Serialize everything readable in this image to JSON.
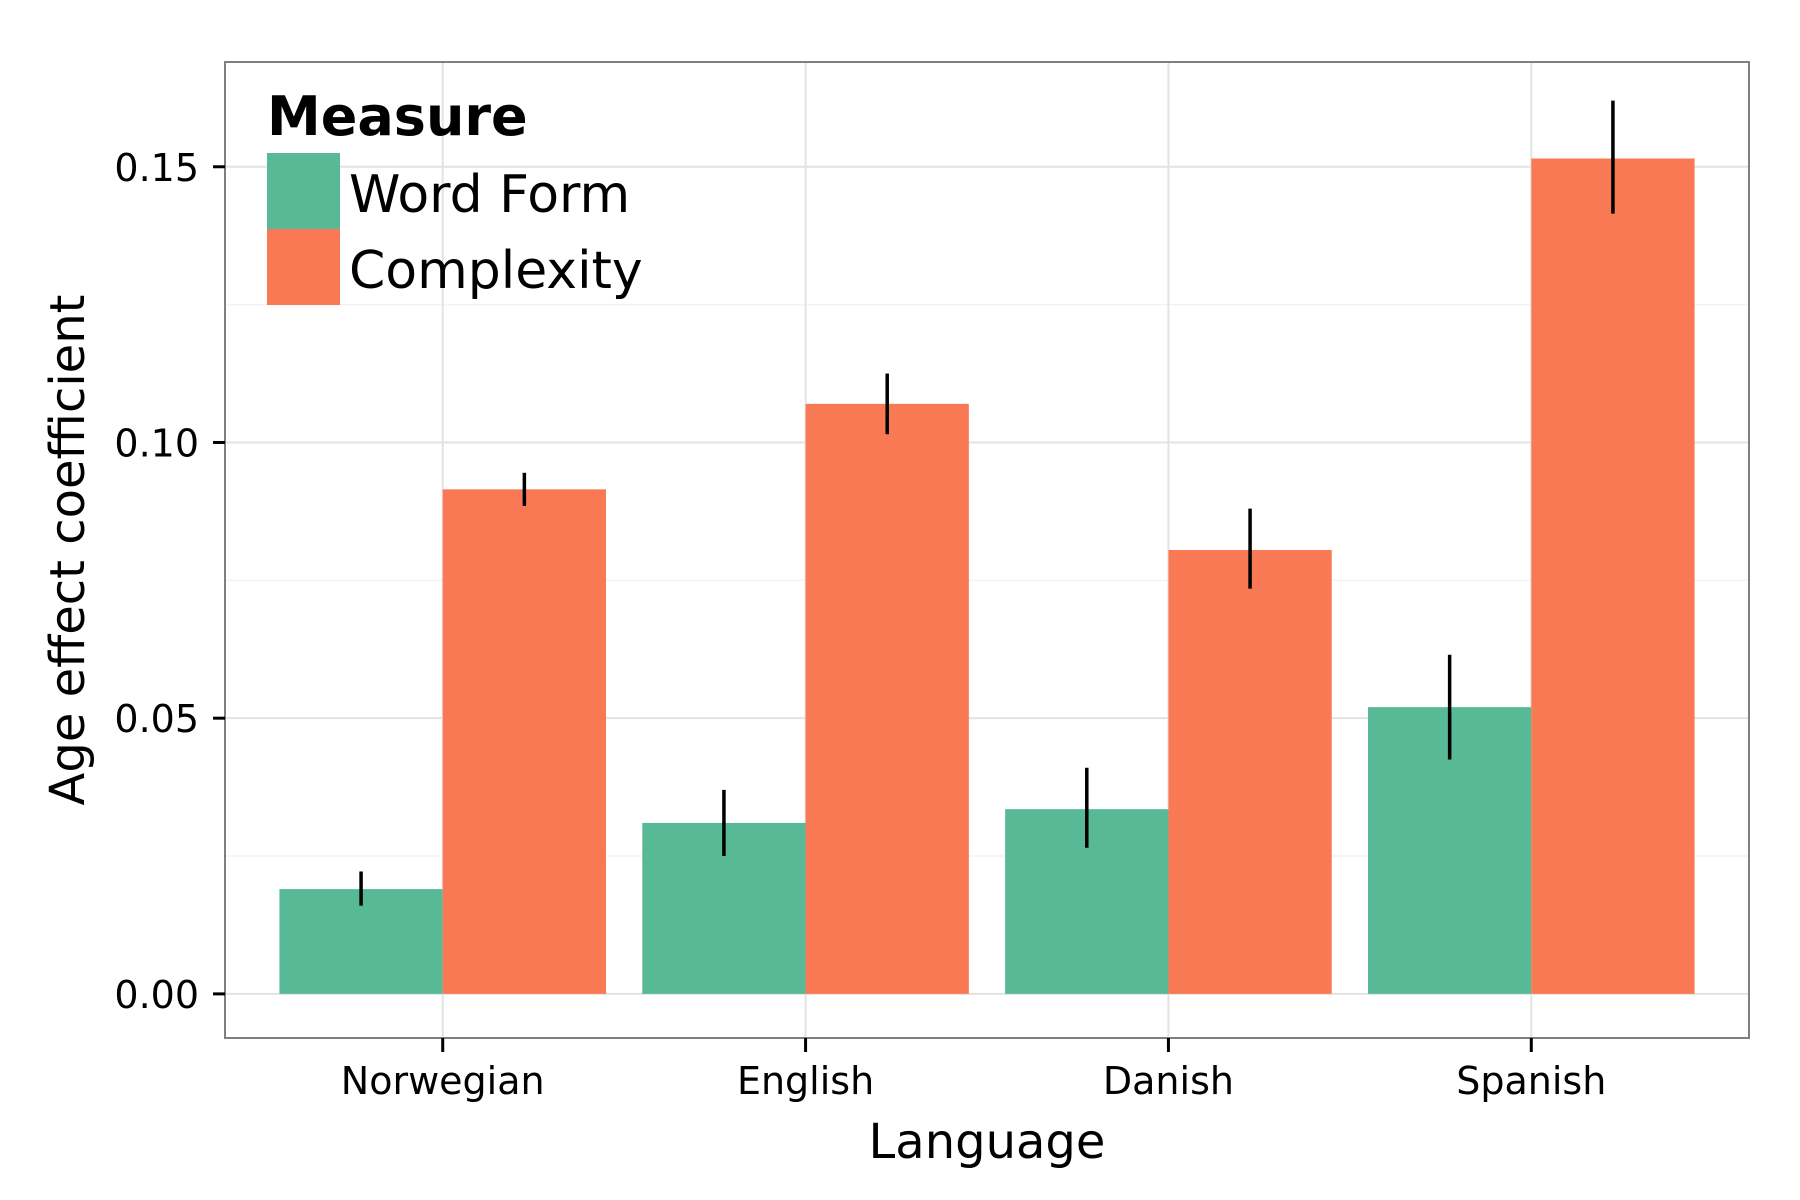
{
  "chart_data": {
    "type": "bar",
    "title": "",
    "xlabel": "Language",
    "ylabel": "Age effect coefficient",
    "categories": [
      "Norwegian",
      "English",
      "Danish",
      "Spanish"
    ],
    "ylim": [
      -0.008,
      0.169
    ],
    "yticks": [
      0.0,
      0.05,
      0.1,
      0.15
    ],
    "ytick_labels": [
      "0.00",
      "0.05",
      "0.10",
      "0.15"
    ],
    "grid": true,
    "legend": {
      "title": "Measure",
      "position": "top-left"
    },
    "series": [
      {
        "name": "Word Form",
        "color": "#57B995",
        "values": [
          0.019,
          0.031,
          0.0335,
          0.052
        ],
        "err_low": [
          0.016,
          0.025,
          0.0265,
          0.0425
        ],
        "err_high": [
          0.0222,
          0.037,
          0.041,
          0.0615
        ]
      },
      {
        "name": "Complexity",
        "color": "#F97954",
        "values": [
          0.0915,
          0.107,
          0.0805,
          0.1515
        ],
        "err_low": [
          0.0885,
          0.1015,
          0.0735,
          0.1415
        ],
        "err_high": [
          0.0945,
          0.1125,
          0.088,
          0.162
        ]
      }
    ]
  }
}
